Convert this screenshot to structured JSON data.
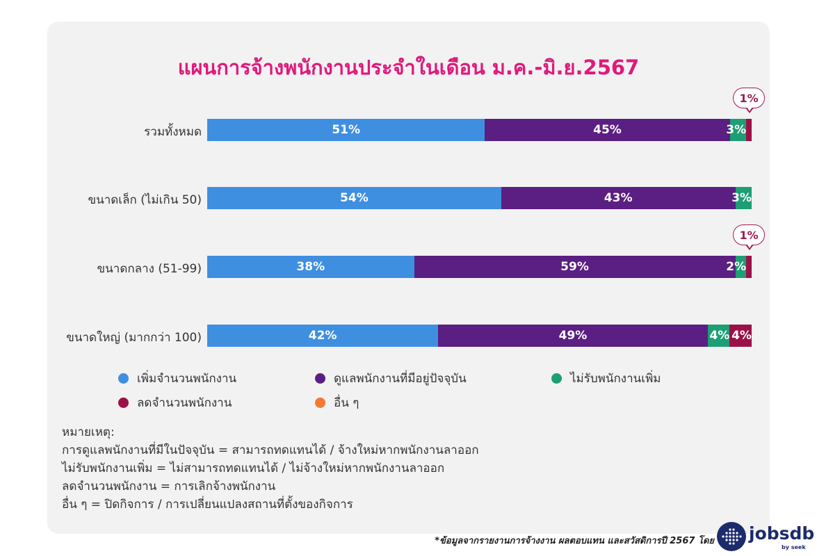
{
  "chart_data": {
    "type": "bar",
    "orientation": "horizontal",
    "stacked": true,
    "normalized": true,
    "title": "แผนการจ้างพนักงานประจำในเดือน ม.ค.-มิ.ย.2567",
    "categories": [
      "รวมทั้งหมด",
      "ขนาดเล็ก (ไม่เกิน 50)",
      "ขนาดกลาง (51-99)",
      "ขนาดใหญ่ (มากกว่า 100)"
    ],
    "series": [
      {
        "name": "เพิ่มจำนวนพนักงาน",
        "color": "#3f8fe0",
        "values": [
          51,
          54,
          38,
          42
        ],
        "labels": [
          "51%",
          "54%",
          "38%",
          "42%"
        ]
      },
      {
        "name": "ดูแลพนักงานที่มีอยู่ปัจจุบัน",
        "color": "#5b1e82",
        "values": [
          45,
          43,
          59,
          49
        ],
        "labels": [
          "45%",
          "43%",
          "59%",
          "49%"
        ]
      },
      {
        "name": "ไม่รับพนักงานเพิ่ม",
        "color": "#1d9e74",
        "values": [
          3,
          3,
          2,
          4
        ],
        "labels": [
          "3%",
          "3%",
          "2%",
          "4%"
        ]
      },
      {
        "name": "ลดจำนวนพนักงาน",
        "color": "#9c1048",
        "values": [
          1,
          0,
          1,
          4
        ],
        "labels": [
          "1%",
          "",
          "1%",
          "4%"
        ]
      },
      {
        "name": "อื่น ๆ",
        "color": "#f47a32",
        "values": [
          0,
          0,
          0,
          0
        ],
        "labels": [
          "",
          "",
          "",
          ""
        ]
      }
    ],
    "callouts": [
      {
        "category_index": 0,
        "series_index": 3,
        "text": "1%"
      },
      {
        "category_index": 2,
        "series_index": 3,
        "text": "1%"
      }
    ],
    "legend_position": "bottom",
    "grid": false
  },
  "notes": {
    "heading": "หมายเหตุ:",
    "lines": [
      "การดูแลพนักงานที่มีในปัจจุบัน = สามารถทดแทนได้ / จ้างใหม่หากพนักงานลาออก",
      "ไม่รับพนักงานเพิ่ม = ไม่สามารถทดแทนได้ / ไม่จ้างใหม่หากพนักงานลาออก",
      "ลดจำนวนพนักงาน = การเลิกจ้างพนักงาน",
      "อื่น ๆ = ปิดกิจการ / การเปลี่ยนแปลงสถานที่ตั้งของกิจการ"
    ]
  },
  "source": "*ข้อมูลจากรายงานการจ้างงาน ผลตอบแทน และสวัสดิการปี 2567 โดย",
  "brand": {
    "name": "jobsdb",
    "sub": "by seek",
    "color": "#1c2b6b"
  }
}
